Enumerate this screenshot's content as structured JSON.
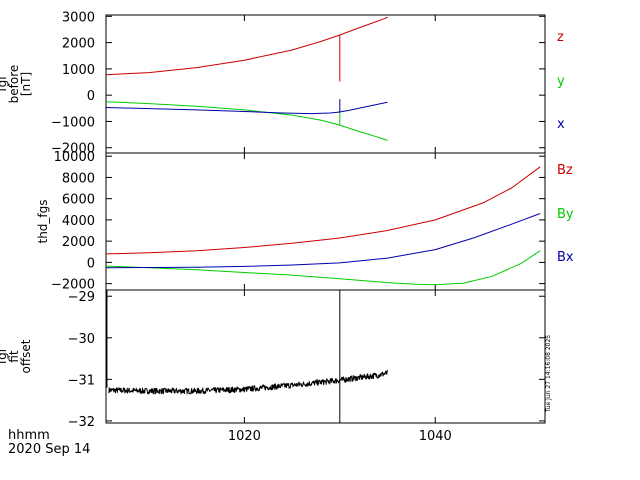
{
  "footer": {
    "label": "hhmm",
    "date": "2020 Sep 14"
  },
  "timestamp": "Tue Jun 27 14:16:08 2025",
  "chart_data": [
    {
      "type": "line",
      "ylabel": [
        "fgl",
        "before",
        "[nT]"
      ],
      "ylim": [
        -2200,
        3050
      ],
      "yticks": [
        -2000,
        -1000,
        0,
        1000,
        2000,
        3000
      ],
      "ytick_labels": [
        "−2000",
        "−1000",
        "0",
        "1000",
        "2000",
        "3000"
      ],
      "legend": "right",
      "series": [
        {
          "name": "z",
          "color": "#cc0000",
          "x": [
            1005.5,
            1010,
            1015,
            1020,
            1025,
            1028,
            1030,
            1032,
            1034,
            1035
          ],
          "y": [
            780,
            860,
            1050,
            1330,
            1720,
            2040,
            2290,
            2560,
            2820,
            2960
          ],
          "spike": {
            "x": 1030,
            "y0": 2300,
            "y1": 520
          }
        },
        {
          "name": "y",
          "color": "#00cc00",
          "x": [
            1005.5,
            1010,
            1015,
            1020,
            1025,
            1028,
            1030,
            1032,
            1034,
            1035
          ],
          "y": [
            -250,
            -320,
            -420,
            -560,
            -760,
            -950,
            -1140,
            -1380,
            -1600,
            -1720
          ],
          "spike": {
            "x": 1030,
            "y0": -1150,
            "y1": -600
          }
        },
        {
          "name": "x",
          "color": "#0000aa",
          "x": [
            1005.5,
            1010,
            1015,
            1020,
            1024,
            1027,
            1029,
            1030,
            1031,
            1033,
            1035
          ],
          "y": [
            -470,
            -510,
            -560,
            -620,
            -680,
            -700,
            -680,
            -640,
            -570,
            -420,
            -270
          ],
          "spike": {
            "x": 1030,
            "y0": -650,
            "y1": -150
          }
        }
      ]
    },
    {
      "type": "line",
      "ylabel": [
        "thd_fgs"
      ],
      "ylim": [
        -2600,
        10300
      ],
      "yticks": [
        -2000,
        0,
        2000,
        4000,
        6000,
        8000,
        10000
      ],
      "ytick_labels": [
        "−2000",
        "0",
        "2000",
        "4000",
        "6000",
        "8000",
        "10000"
      ],
      "legend": "right",
      "series": [
        {
          "name": "Bz",
          "color": "#cc0000",
          "x": [
            1005.5,
            1010,
            1015,
            1020,
            1025,
            1030,
            1035,
            1040,
            1045,
            1048,
            1051
          ],
          "y": [
            800,
            900,
            1100,
            1400,
            1800,
            2300,
            3000,
            4000,
            5600,
            7000,
            9000
          ]
        },
        {
          "name": "By",
          "color": "#00cc00",
          "x": [
            1005.5,
            1010,
            1015,
            1020,
            1025,
            1030,
            1035,
            1038,
            1040,
            1043,
            1046,
            1049,
            1051
          ],
          "y": [
            -350,
            -500,
            -700,
            -950,
            -1200,
            -1550,
            -1900,
            -2050,
            -2100,
            -1950,
            -1300,
            -100,
            1100
          ]
        },
        {
          "name": "Bx",
          "color": "#0000aa",
          "x": [
            1005.5,
            1010,
            1015,
            1020,
            1025,
            1030,
            1035,
            1040,
            1044,
            1048,
            1051
          ],
          "y": [
            -500,
            -480,
            -450,
            -380,
            -250,
            -50,
            400,
            1200,
            2300,
            3600,
            4600
          ]
        }
      ]
    },
    {
      "type": "line",
      "ylabel": [
        "fgl",
        "fit",
        "offset"
      ],
      "ylim": [
        -32.05,
        -28.85
      ],
      "yticks": [
        -32,
        -31,
        -30,
        -29
      ],
      "ytick_labels": [
        "−32",
        "−31",
        "−30",
        "−29"
      ],
      "series": [
        {
          "name": "",
          "color": "#000000",
          "x": [
            1005.8,
            1010,
            1015,
            1020,
            1023,
            1026,
            1028,
            1030,
            1032,
            1034,
            1035
          ],
          "y": [
            -31.26,
            -31.28,
            -31.28,
            -31.24,
            -31.18,
            -31.12,
            -31.07,
            -31.02,
            -30.96,
            -30.9,
            -30.85
          ],
          "noise": 0.07,
          "start_spike": {
            "x": 1005.6,
            "y0": -31.2,
            "y1": -28.85
          },
          "spike": {
            "x": 1030,
            "y0": -32.05,
            "y1": -28.85
          }
        }
      ]
    }
  ],
  "x_axis": {
    "xlim": [
      1005.5,
      1051.5
    ],
    "ticks": [
      1020,
      1040
    ],
    "tick_labels": [
      "1020",
      "1040"
    ]
  }
}
